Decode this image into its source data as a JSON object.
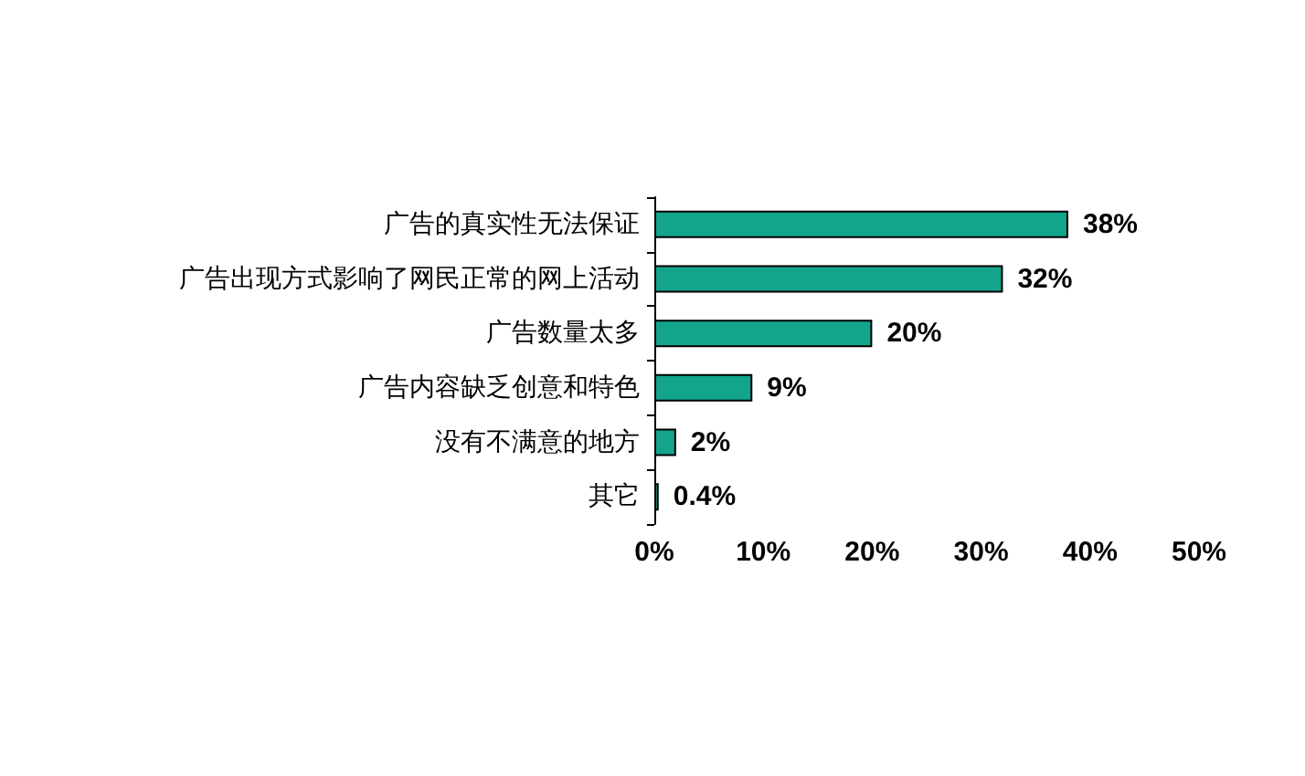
{
  "chart_data": {
    "type": "bar",
    "orientation": "horizontal",
    "categories": [
      "广告的真实性无法保证",
      "广告出现方式影响了网民正常的网上活动",
      "广告数量太多",
      "广告内容缺乏创意和特色",
      "没有不满意的地方",
      "其它"
    ],
    "values": [
      38,
      32,
      20,
      9,
      2,
      0.4
    ],
    "value_labels": [
      "38%",
      "32%",
      "20%",
      "9%",
      "2%",
      "0.4%"
    ],
    "color": "#12a58c",
    "xlim": [
      0,
      50
    ],
    "xticks": [
      {
        "value": 0,
        "label": "0%"
      },
      {
        "value": 10,
        "label": "10%"
      },
      {
        "value": 20,
        "label": "20%"
      },
      {
        "value": 30,
        "label": "30%"
      },
      {
        "value": 40,
        "label": "40%"
      },
      {
        "value": 50,
        "label": "50%"
      }
    ],
    "grid": false
  }
}
